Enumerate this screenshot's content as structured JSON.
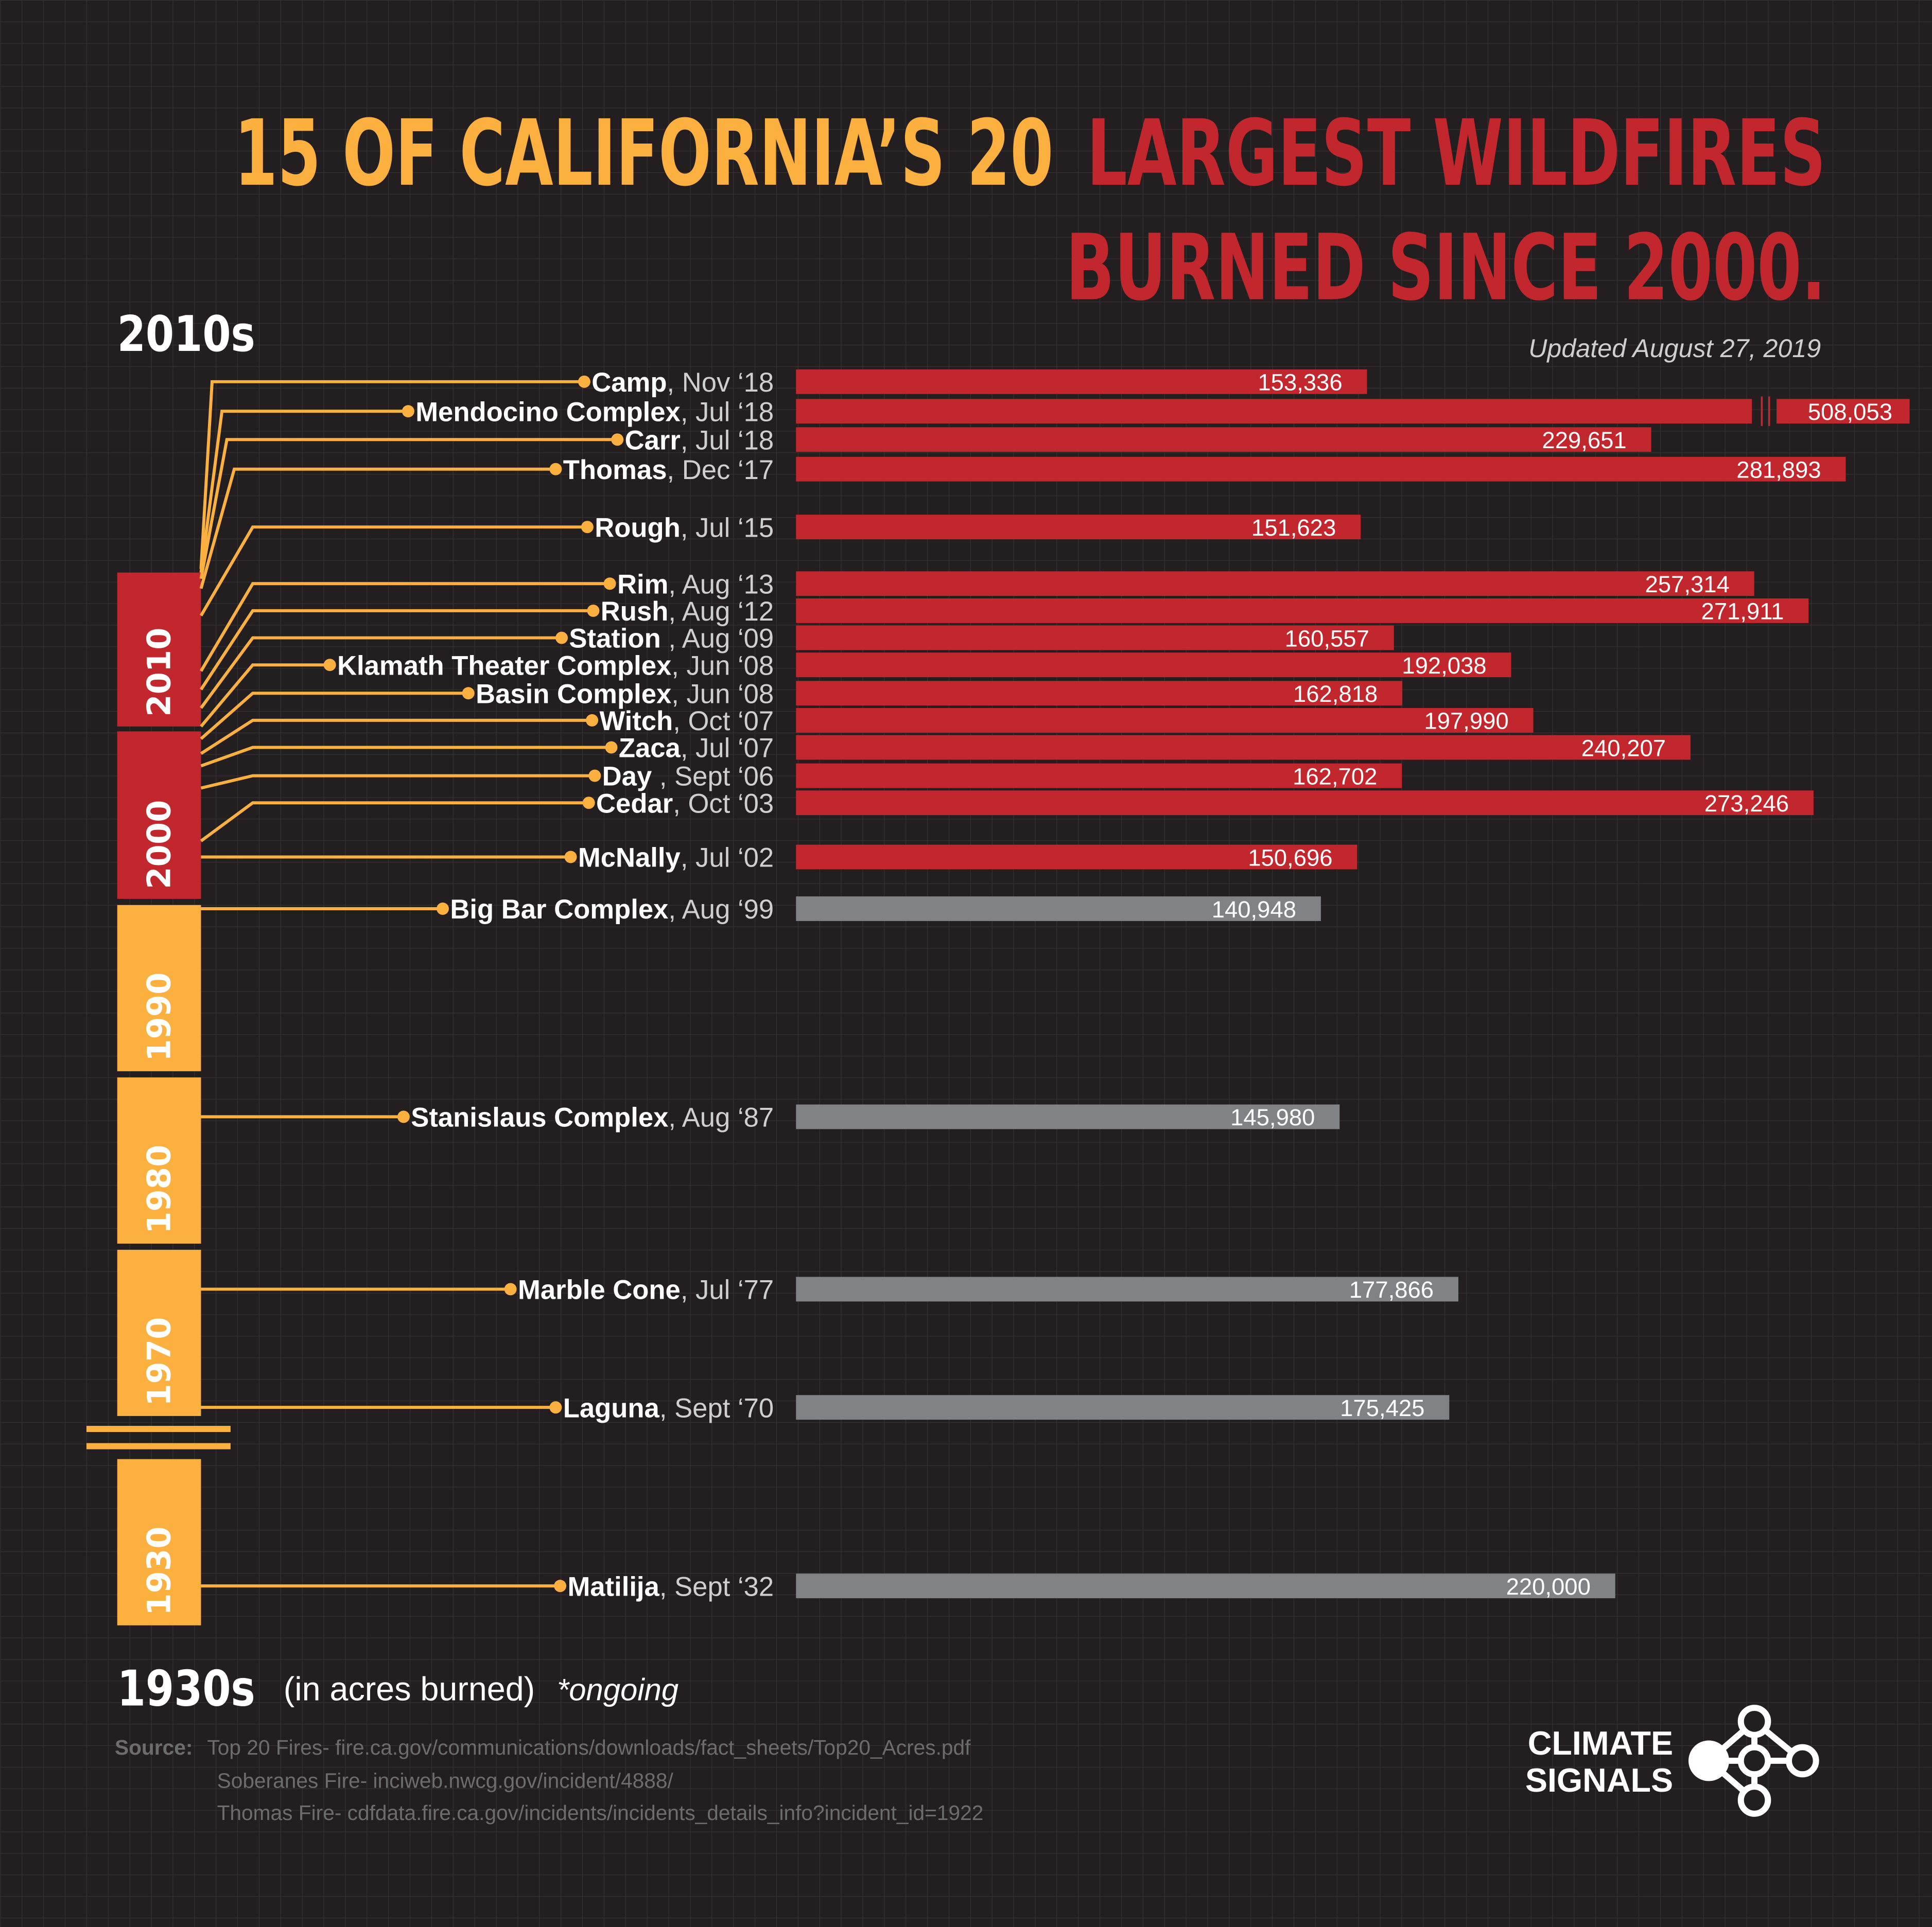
{
  "chart_data": {
    "type": "bar",
    "orientation": "horizontal",
    "title_lead": "15 OF CALIFORNIA’S 20",
    "title_line1": "LARGEST WILDFIRES",
    "title_line2": "BURNED SINCE 2000.",
    "subtitle": "Updated August 27, 2019",
    "timeline_top": "2010s",
    "timeline_bottom": "1930s",
    "unit_note": "(in acres burned)",
    "ongoing_note": "*ongoing",
    "categories": [
      "Camp",
      "Mendocino Complex",
      "Carr",
      "Thomas",
      "Rough",
      "Rim",
      "Rush",
      "Station",
      "Klamath Theater Complex",
      "Basin Complex",
      "Witch",
      "Zaca",
      "Day",
      "Cedar",
      "McNally",
      "Big Bar Complex",
      "Stanislaus Complex",
      "Marble Cone",
      "Laguna",
      "Matilija"
    ],
    "dates": [
      ", Nov ‘18",
      ", Jul ‘18",
      ", Jul ‘18",
      ", Dec ‘17",
      ", Jul ‘15",
      ", Aug ‘13",
      ", Aug ‘12",
      " , Aug ‘09",
      ", Jun ‘08",
      ", Jun ‘08",
      ", Oct ‘07",
      ", Jul ‘07",
      " , Sept ‘06",
      ", Oct ‘03",
      ", Jul ‘02",
      ", Aug ‘99",
      ", Aug ‘87",
      ", Jul ‘77",
      ", Sept ‘70",
      ", Sept ‘32"
    ],
    "values": [
      153336,
      508053,
      229651,
      281893,
      151623,
      257314,
      271911,
      160557,
      192038,
      162818,
      197990,
      240207,
      162702,
      273246,
      150696,
      140948,
      145980,
      177866,
      175425,
      220000
    ],
    "value_labels": [
      "153,336",
      "508,053",
      "229,651",
      "281,893",
      "151,623",
      "257,314",
      "271,911",
      "160,557",
      "192,038",
      "162,818",
      "197,990",
      "240,207",
      "162,702",
      "273,246",
      "150,696",
      "140,948",
      "145,980",
      "177,866",
      "175,425",
      "220,000"
    ],
    "colors": [
      "#c1272d",
      "#c1272d",
      "#c1272d",
      "#c1272d",
      "#c1272d",
      "#c1272d",
      "#c1272d",
      "#c1272d",
      "#c1272d",
      "#c1272d",
      "#c1272d",
      "#c1272d",
      "#c1272d",
      "#c1272d",
      "#c1272d",
      "#808285",
      "#808285",
      "#808285",
      "#808285",
      "#808285"
    ],
    "decades": [
      {
        "label": "2010",
        "color": "#c1272d"
      },
      {
        "label": "2000",
        "color": "#c1272d"
      },
      {
        "label": "1990",
        "color": "#fbb040"
      },
      {
        "label": "1980",
        "color": "#fbb040"
      },
      {
        "label": "1970",
        "color": "#fbb040"
      },
      {
        "label": "1930",
        "color": "#fbb040"
      }
    ],
    "source_label": "Source:",
    "sources": [
      "Top 20 Fires- fire.ca.gov/communications/downloads/fact_sheets/Top20_Acres.pdf",
      "Soberanes Fire- inciweb.nwcg.gov/incident/4888/",
      "Thomas Fire- cdfdata.fire.ca.gov/incidents/incidents_details_info?incident_id=1922"
    ],
    "logo": [
      "CLIMATE",
      "SIGNALS"
    ]
  }
}
